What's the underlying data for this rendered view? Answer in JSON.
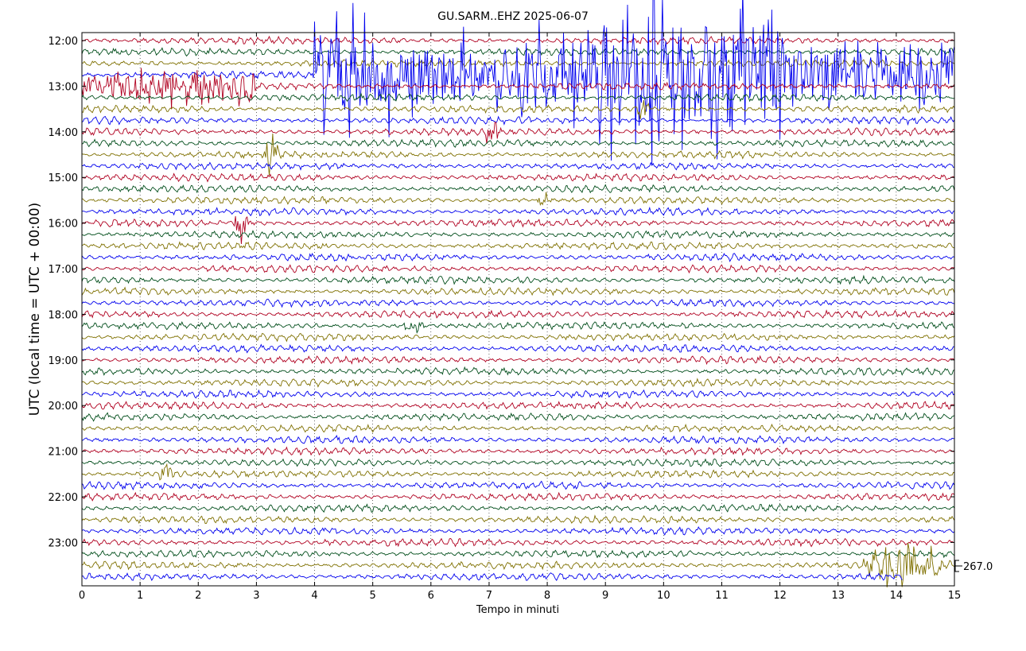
{
  "chart_data": {
    "type": "line",
    "title": "GU.SARM..EHZ 2025-06-07",
    "xlabel": "Tempo in minuti",
    "ylabel": "UTC (local time = UTC + 00:00)",
    "xlim": [
      0,
      15
    ],
    "x_ticks": [
      0,
      1,
      2,
      3,
      4,
      5,
      6,
      7,
      8,
      9,
      10,
      11,
      12,
      13,
      14,
      15
    ],
    "trace_start": "12:00",
    "trace_interval_minutes": 15,
    "trace_count": 48,
    "y_ticks": [
      "12:00",
      "13:00",
      "14:00",
      "15:00",
      "16:00",
      "17:00",
      "18:00",
      "19:00",
      "20:00",
      "21:00",
      "22:00",
      "23:00"
    ],
    "trace_colors": [
      "#b00020",
      "#004d1a",
      "#7f7000",
      "#0000ee"
    ],
    "grid": true,
    "scale_label": "267.0",
    "last_trace_end_minute": 14.1,
    "events": [
      {
        "trace_time": "12:45",
        "start_minute": 4.0,
        "end_minute": 15.0,
        "peak_amplitude": 4.5
      },
      {
        "trace_time": "13:00",
        "start_minute": 0.0,
        "end_minute": 3.0,
        "peak_amplitude": 1.2
      },
      {
        "trace_time": "13:30",
        "start_minute": 9.5,
        "end_minute": 9.8,
        "peak_amplitude": 1.0
      },
      {
        "trace_time": "14:00",
        "start_minute": 6.9,
        "end_minute": 7.2,
        "peak_amplitude": 0.9
      },
      {
        "trace_time": "14:30",
        "start_minute": 3.1,
        "end_minute": 3.4,
        "peak_amplitude": 1.0
      },
      {
        "trace_time": "15:30",
        "start_minute": 7.8,
        "end_minute": 8.1,
        "peak_amplitude": 0.8
      },
      {
        "trace_time": "16:00",
        "start_minute": 2.6,
        "end_minute": 2.9,
        "peak_amplitude": 1.4
      },
      {
        "trace_time": "18:15",
        "start_minute": 5.5,
        "end_minute": 5.9,
        "peak_amplitude": 0.9
      },
      {
        "trace_time": "21:30",
        "start_minute": 1.3,
        "end_minute": 1.6,
        "peak_amplitude": 0.8
      },
      {
        "trace_time": "23:30",
        "start_minute": 13.3,
        "end_minute": 15.0,
        "peak_amplitude": 1.1
      }
    ]
  }
}
